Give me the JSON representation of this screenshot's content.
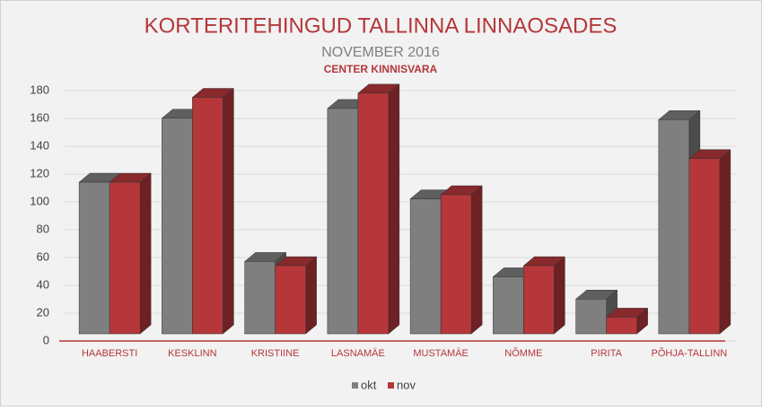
{
  "chart_data": {
    "type": "bar3d",
    "title": "KORTERITEHINGUD TALLINNA LINNAOSADES",
    "subtitle": "NOVEMBER 2016",
    "source": "CENTER KINNISVARA",
    "categories": [
      "HAABERSTI",
      "KESKLINN",
      "KRISTIINE",
      "LASNAMÄE",
      "MUSTAMÄE",
      "NÕMME",
      "PIRITA",
      "PÕHJA-TALLINN"
    ],
    "series": [
      {
        "name": "okt",
        "color": "#7f7f7f",
        "values": [
          109,
          155,
          52,
          162,
          97,
          41,
          25,
          154
        ]
      },
      {
        "name": "nov",
        "color": "#b5373a",
        "values": [
          109,
          170,
          49,
          173,
          100,
          49,
          12,
          126
        ]
      }
    ],
    "ylim": [
      0,
      180
    ],
    "yticks": [
      0,
      20,
      40,
      60,
      80,
      100,
      120,
      140,
      160,
      180
    ],
    "grid": true
  }
}
